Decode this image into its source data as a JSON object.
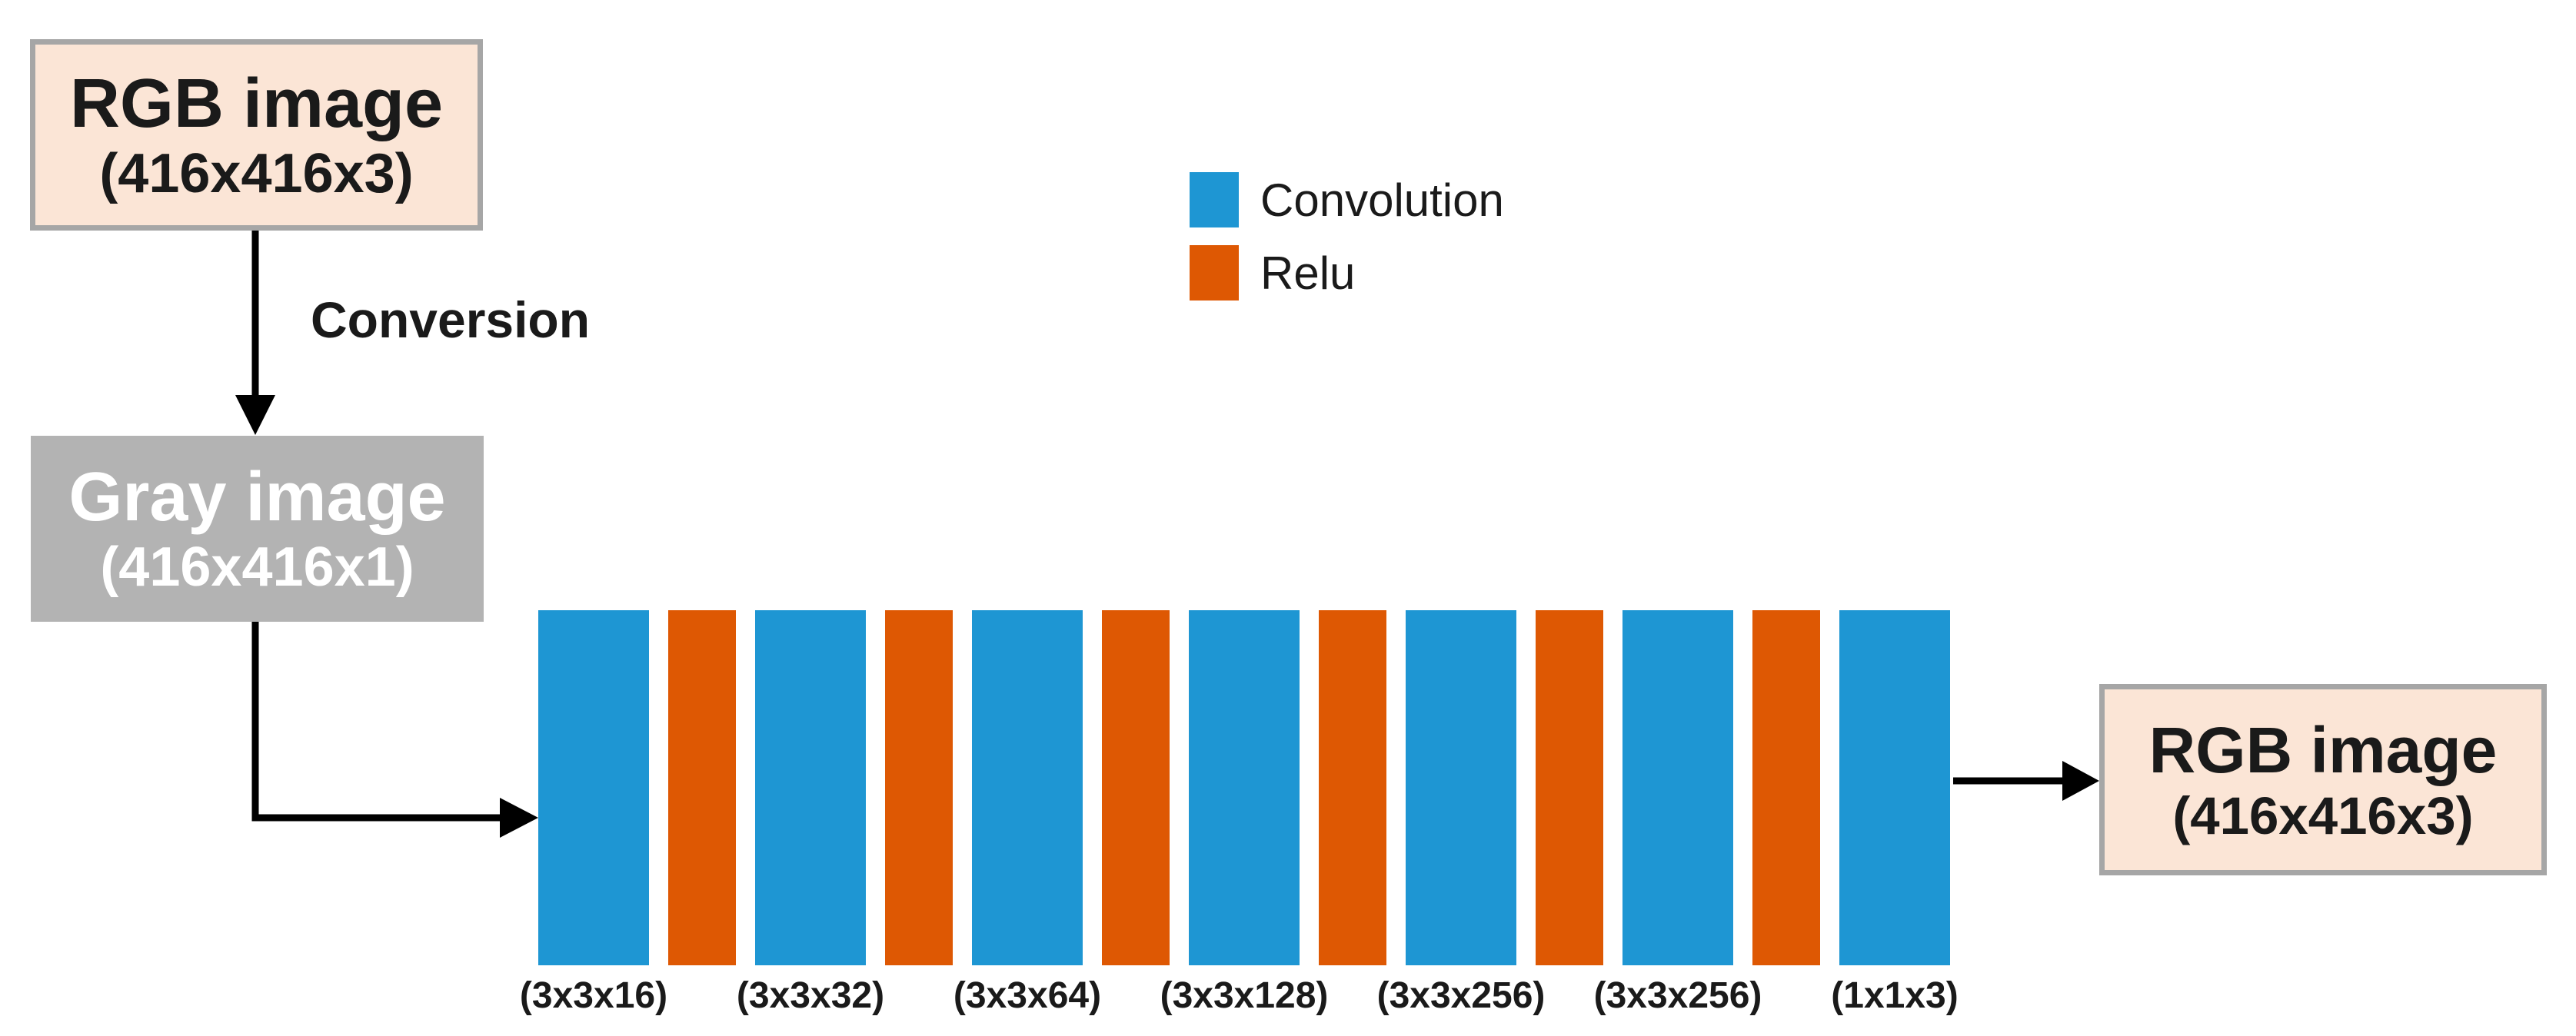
{
  "diagram": {
    "input_box": {
      "title": "RGB image",
      "size": "(416x416x3)"
    },
    "gray_box": {
      "title": "Gray image",
      "size": "(416x416x1)"
    },
    "output_box": {
      "title": "RGB image",
      "size": "(416x416x3)"
    },
    "conversion_label": "Conversion",
    "legend": [
      {
        "name": "convolution",
        "label": "Convolution",
        "color": "#1E96D3"
      },
      {
        "name": "relu",
        "label": "Relu",
        "color": "#DE5803"
      }
    ],
    "layers": [
      {
        "type": "conv",
        "label": "(3x3x16)"
      },
      {
        "type": "relu",
        "label": ""
      },
      {
        "type": "conv",
        "label": "(3x3x32)"
      },
      {
        "type": "relu",
        "label": ""
      },
      {
        "type": "conv",
        "label": "(3x3x64)"
      },
      {
        "type": "relu",
        "label": ""
      },
      {
        "type": "conv",
        "label": "(3x3x128)"
      },
      {
        "type": "relu",
        "label": ""
      },
      {
        "type": "conv",
        "label": "(3x3x256)"
      },
      {
        "type": "relu",
        "label": ""
      },
      {
        "type": "conv",
        "label": "(3x3x256)"
      },
      {
        "type": "relu",
        "label": ""
      },
      {
        "type": "conv",
        "label": "(1x1x3)"
      }
    ],
    "colors": {
      "convolution": "#1E96D3",
      "relu": "#DE5803",
      "box_fill": "#FBE5D6",
      "box_border": "#A6A6A6",
      "gray_box_fill": "#B3B3B3",
      "arrow": "#000000",
      "text": "#1A1A1A",
      "background": "#FFFFFF"
    }
  }
}
